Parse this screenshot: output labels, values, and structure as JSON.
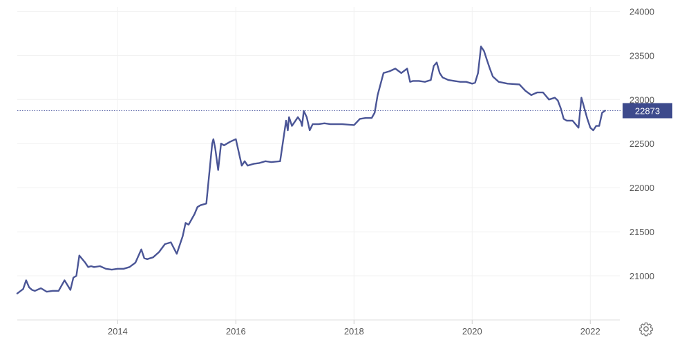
{
  "chart_data": {
    "type": "line",
    "title": "",
    "xlabel": "",
    "ylabel": "",
    "x_ticks": [
      "2014",
      "2016",
      "2018",
      "2020",
      "2022"
    ],
    "y_ticks": [
      21000,
      21500,
      22000,
      22500,
      23000,
      23500,
      24000
    ],
    "xlim": [
      2012.3,
      2022.5
    ],
    "ylim": [
      20500,
      24050
    ],
    "grid": true,
    "legend": "none",
    "current_value": 22873,
    "current_value_label": "22873",
    "line_color": "#4a5596",
    "series": [
      {
        "x": [
          2012.3,
          2012.4,
          2012.45,
          2012.5,
          2012.55,
          2012.6,
          2012.7,
          2012.8,
          2012.9,
          2013.0,
          2013.1,
          2013.2,
          2013.25,
          2013.3,
          2013.35,
          2013.45,
          2013.5,
          2013.55,
          2013.6,
          2013.7,
          2013.8,
          2013.9,
          2014.0,
          2014.1,
          2014.2,
          2014.3,
          2014.4,
          2014.45,
          2014.5,
          2014.6,
          2014.7,
          2014.8,
          2014.9,
          2015.0,
          2015.1,
          2015.15,
          2015.2,
          2015.3,
          2015.35,
          2015.4,
          2015.5,
          2015.6,
          2015.62,
          2015.65,
          2015.7,
          2015.75,
          2015.8,
          2015.9,
          2016.0,
          2016.05,
          2016.1,
          2016.15,
          2016.2,
          2016.3,
          2016.4,
          2016.5,
          2016.6,
          2016.75,
          2016.85,
          2016.88,
          2016.9,
          2016.95,
          2017.0,
          2017.05,
          2017.1,
          2017.12,
          2017.15,
          2017.2,
          2017.25,
          2017.3,
          2017.4,
          2017.5,
          2017.6,
          2017.8,
          2018.0,
          2018.1,
          2018.2,
          2018.3,
          2018.35,
          2018.4,
          2018.5,
          2018.6,
          2018.7,
          2018.8,
          2018.9,
          2018.95,
          2019.0,
          2019.1,
          2019.2,
          2019.3,
          2019.35,
          2019.4,
          2019.45,
          2019.5,
          2019.6,
          2019.7,
          2019.8,
          2019.9,
          2020.0,
          2020.05,
          2020.1,
          2020.15,
          2020.2,
          2020.25,
          2020.3,
          2020.35,
          2020.45,
          2020.6,
          2020.8,
          2020.9,
          2021.0,
          2021.1,
          2021.2,
          2021.3,
          2021.4,
          2021.45,
          2021.5,
          2021.55,
          2021.6,
          2021.7,
          2021.8,
          2021.85,
          2021.9,
          2021.95,
          2022.0,
          2022.05,
          2022.1,
          2022.15,
          2022.2,
          2022.25
        ],
        "y": [
          20800,
          20850,
          20950,
          20870,
          20840,
          20830,
          20860,
          20820,
          20830,
          20830,
          20950,
          20840,
          20980,
          21000,
          21230,
          21150,
          21100,
          21110,
          21100,
          21110,
          21080,
          21070,
          21080,
          21080,
          21100,
          21150,
          21300,
          21200,
          21190,
          21210,
          21270,
          21360,
          21380,
          21250,
          21450,
          21600,
          21580,
          21700,
          21780,
          21800,
          21820,
          22500,
          22550,
          22450,
          22200,
          22500,
          22480,
          22520,
          22550,
          22400,
          22250,
          22300,
          22250,
          22270,
          22280,
          22300,
          22290,
          22300,
          22760,
          22650,
          22800,
          22700,
          22750,
          22800,
          22750,
          22700,
          22870,
          22800,
          22650,
          22720,
          22720,
          22730,
          22720,
          22720,
          22710,
          22780,
          22790,
          22790,
          22850,
          23050,
          23300,
          23320,
          23350,
          23300,
          23350,
          23200,
          23210,
          23210,
          23200,
          23220,
          23380,
          23420,
          23300,
          23250,
          23220,
          23210,
          23200,
          23200,
          23180,
          23190,
          23300,
          23600,
          23550,
          23450,
          23350,
          23260,
          23200,
          23180,
          23170,
          23100,
          23050,
          23080,
          23080,
          23000,
          23020,
          22990,
          22900,
          22780,
          22760,
          22760,
          22680,
          23020,
          22900,
          22780,
          22680,
          22650,
          22700,
          22700,
          22850,
          22873
        ]
      }
    ]
  }
}
